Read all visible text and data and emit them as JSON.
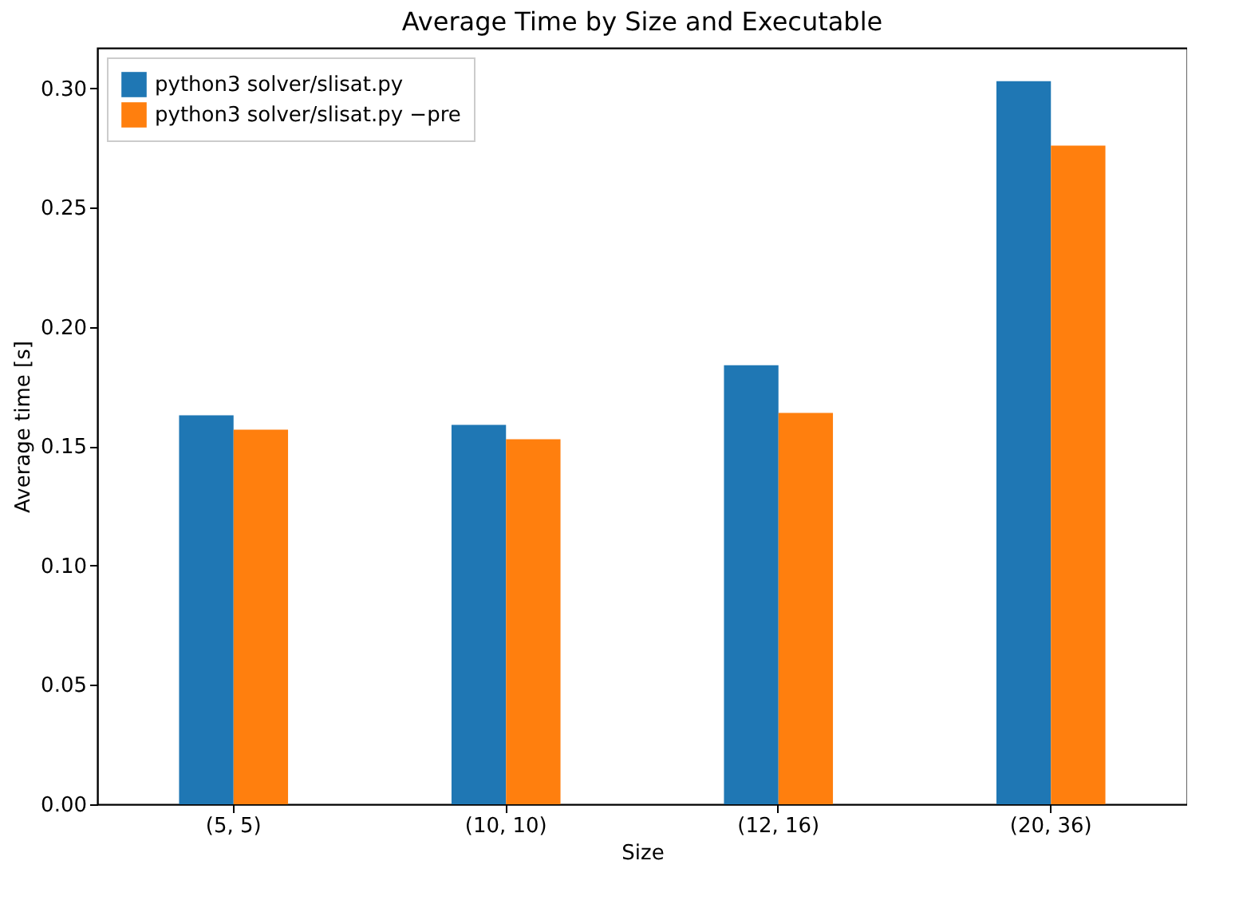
{
  "chart_data": {
    "type": "bar",
    "title": "Average Time by Size and Executable",
    "xlabel": "Size",
    "ylabel": "Average time [s]",
    "categories": [
      "(5, 5)",
      "(10, 10)",
      "(12, 16)",
      "(20, 36)"
    ],
    "series": [
      {
        "name": "python3 solver/slisat.py",
        "color": "#1f77b4",
        "values": [
          0.163,
          0.159,
          0.184,
          0.303
        ]
      },
      {
        "name": "python3 solver/slisat.py −pre",
        "color": "#ff7f0e",
        "values": [
          0.157,
          0.153,
          0.164,
          0.276
        ]
      }
    ],
    "ylim": [
      0,
      0.317
    ],
    "yticks": [
      {
        "value": 0,
        "label": "0.00"
      },
      {
        "value": 0.05,
        "label": "0.05"
      },
      {
        "value": 0.1,
        "label": "0.10"
      },
      {
        "value": 0.15,
        "label": "0.15"
      },
      {
        "value": 0.2,
        "label": "0.20"
      },
      {
        "value": 0.25,
        "label": "0.25"
      },
      {
        "value": 0.3,
        "label": "0.30"
      }
    ],
    "legend": "top left"
  }
}
